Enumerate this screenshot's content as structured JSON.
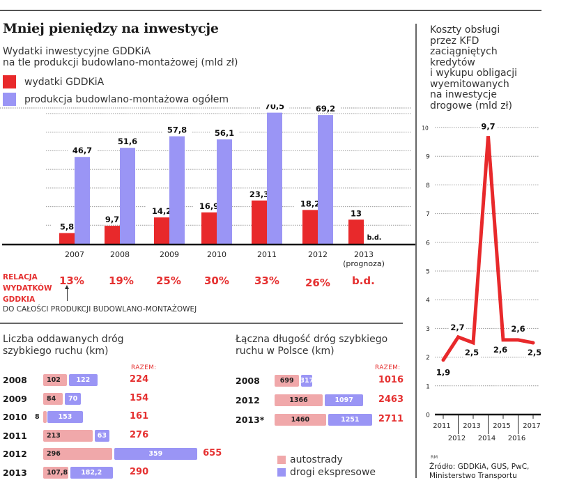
{
  "header": {
    "title": "Mniej pieniędzy na inwestycje",
    "subtitle_line1": "Wydatki inwestycyjne GDDKiA",
    "subtitle_line2": "na tle produkcji budowlano-montażowej (mld zł)"
  },
  "legend_main": [
    {
      "label": "wydatki GDDKiA",
      "color": "#e8292b"
    },
    {
      "label": "produkcja budowlano-montażowa ogółem",
      "color": "#9a95f5"
    }
  ],
  "relation": {
    "label_lines": [
      "RELACJA",
      "WYDATKÓW",
      "GDDKIA"
    ],
    "description": "DO CAŁOŚCI PRODUKCJI BUDOWLANO-MONTAŻOWEJ",
    "values": [
      "13%",
      "19%",
      "25%",
      "30%",
      "33%",
      "26%",
      "b.d."
    ]
  },
  "fast_roads": {
    "title_line1": "Liczba oddawanych dróg",
    "title_line2": "szybkiego ruchu (km)",
    "razem_label": "RAZEM:"
  },
  "total_length": {
    "title_line1": "Łączna długość dróg szybkiego",
    "title_line2": "ruchu w Polsce (km)",
    "razem_label": "RAZEM:"
  },
  "legend_roads": [
    {
      "label": "autostrady",
      "color": "#f0a8aa"
    },
    {
      "label": "drogi ekspresowe",
      "color": "#9a95f5"
    }
  ],
  "right_panel": {
    "title_lines": [
      "Koszty obsługi",
      "przez KFD",
      "zaciągniętych",
      "kredytów",
      "i wykupu obligacji",
      "wyemitowanych",
      "na inwestycje",
      "drogowe (mld zł)"
    ],
    "credit": "RM",
    "source_line1": "Źródło: GDDKiA, GUS, PwC,",
    "source_line2": "Ministerstwo Transportu"
  },
  "chart_data": [
    {
      "type": "bar",
      "title": "Wydatki inwestycyjne GDDKiA na tle produkcji budowlano-montażowej (mld zł)",
      "categories": [
        "2007",
        "2008",
        "2009",
        "2010",
        "2011",
        "2012",
        "2013 (prognoza)"
      ],
      "category_lines": [
        [
          "2007"
        ],
        [
          "2008"
        ],
        [
          "2009"
        ],
        [
          "2010"
        ],
        [
          "2011"
        ],
        [
          "2012"
        ],
        [
          "2013",
          "(prognoza)"
        ]
      ],
      "series": [
        {
          "name": "wydatki GDDKiA",
          "color": "#e8292b",
          "values": [
            5.8,
            9.7,
            14.2,
            16.9,
            23.3,
            18.2,
            13
          ],
          "labels": [
            "5,8",
            "9,7",
            "14,2",
            "16,9",
            "23,3",
            "18,2",
            "13"
          ]
        },
        {
          "name": "produkcja budowlano-montażowa ogółem",
          "color": "#9a95f5",
          "values": [
            46.7,
            51.6,
            57.8,
            56.1,
            70.5,
            69.2,
            null
          ],
          "labels": [
            "46,7",
            "51,6",
            "57,8",
            "56,1",
            "70,5",
            "69,2",
            "b.d."
          ]
        }
      ],
      "ylim": [
        0,
        70
      ],
      "grid": true,
      "gridlines": [
        10,
        20,
        30,
        40,
        50,
        60,
        70
      ],
      "legend": "top-left"
    },
    {
      "type": "bar",
      "orientation": "horizontal-stacked",
      "title": "Liczba oddawanych dróg szybkiego ruchu (km)",
      "categories": [
        "2008",
        "2009",
        "2010",
        "2011",
        "2012",
        "2013"
      ],
      "series": [
        {
          "name": "autostrady",
          "values": [
            102,
            84,
            8,
            213,
            296,
            107.8
          ],
          "labels": [
            "102",
            "84",
            "8",
            "213",
            "296",
            "107,8"
          ]
        },
        {
          "name": "drogi ekspresowe",
          "values": [
            122,
            70,
            153,
            63,
            359,
            182.2
          ],
          "labels": [
            "122",
            "70",
            "153",
            "63",
            "359",
            "182,2"
          ]
        }
      ],
      "totals": [
        "224",
        "154",
        "161",
        "276",
        "655",
        "290"
      ]
    },
    {
      "type": "bar",
      "orientation": "horizontal-stacked",
      "title": "Łączna długość dróg szybkiego ruchu w Polsce (km)",
      "categories": [
        "2008",
        "2012",
        "2013*"
      ],
      "series": [
        {
          "name": "autostrady",
          "values": [
            699,
            1366,
            1460
          ],
          "labels": [
            "699",
            "1366",
            "1460"
          ]
        },
        {
          "name": "drogi ekspresowe",
          "values": [
            317,
            1097,
            1251
          ],
          "labels": [
            "317",
            "1097",
            "1251"
          ]
        }
      ],
      "totals": [
        "1016",
        "2463",
        "2711"
      ]
    },
    {
      "type": "line",
      "title": "Koszty obsługi przez KFD zaciągniętych kredytów i wykupu obligacji wyemitowanych na inwestycje drogowe (mld zł)",
      "x": [
        "2011",
        "2012",
        "2013",
        "2014",
        "2015",
        "2016",
        "2017"
      ],
      "series": [
        {
          "name": "koszty obsługi",
          "color": "#e8292b",
          "values": [
            1.9,
            2.7,
            2.5,
            9.7,
            2.6,
            2.6,
            2.5
          ],
          "labels": [
            "1,9",
            "2,7",
            "2,5",
            "9,7",
            "2,6",
            "2,6",
            "2,5"
          ]
        }
      ],
      "ylim": [
        0,
        10
      ],
      "yticks": [
        "0",
        "1",
        "2",
        "3",
        "4",
        "5",
        "6",
        "7",
        "8",
        "9",
        "10"
      ],
      "grid": true
    }
  ]
}
